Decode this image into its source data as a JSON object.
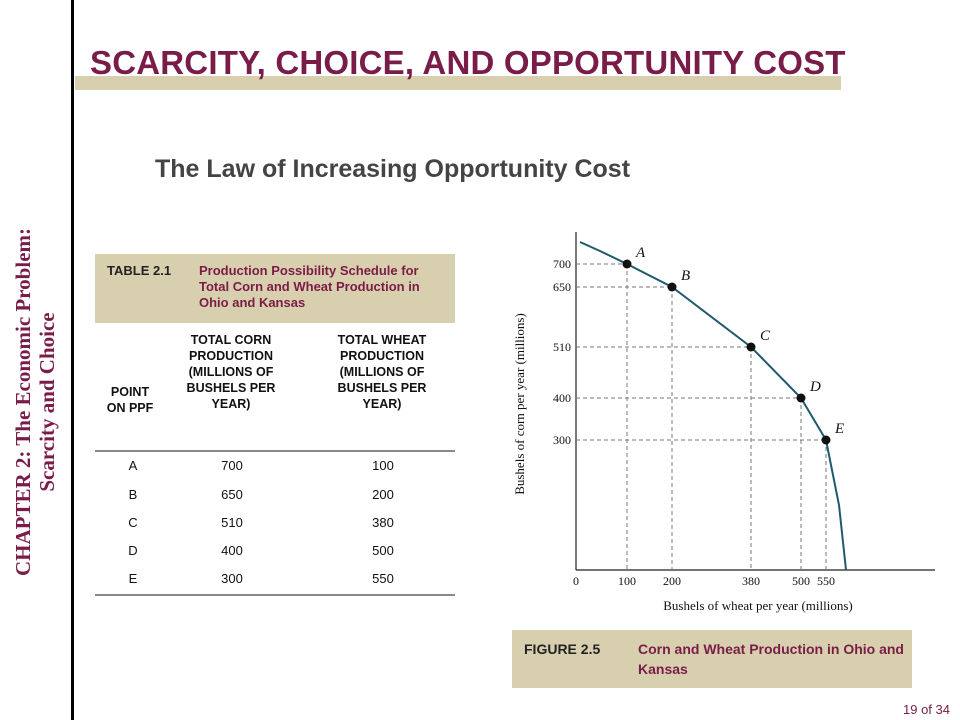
{
  "sidebar": {
    "chapter_line1": "CHAPTER 2:  The Economic Problem:",
    "chapter_line2": "Scarcity and Choice"
  },
  "header": {
    "title": "SCARCITY, CHOICE, AND OPPORTUNITY COST",
    "subtitle": "The Law of Increasing Opportunity Cost"
  },
  "table": {
    "caption_number": "TABLE 2.1",
    "caption_text": "Production Possibility Schedule for Total Corn and Wheat Production in Ohio and Kansas",
    "headers": [
      "POINT ON PPF",
      "TOTAL CORN PRODUCTION (MILLIONS OF BUSHELS PER YEAR)",
      "TOTAL WHEAT PRODUCTION (MILLIONS OF BUSHELS PER YEAR)"
    ],
    "rows": [
      [
        "A",
        "700",
        "100"
      ],
      [
        "B",
        "650",
        "200"
      ],
      [
        "C",
        "510",
        "380"
      ],
      [
        "D",
        "400",
        "500"
      ],
      [
        "E",
        "300",
        "550"
      ]
    ]
  },
  "figure": {
    "caption_number": "FIGURE 2.5",
    "caption_text": "Corn and Wheat Production in Ohio and Kansas"
  },
  "chart_data": {
    "type": "line",
    "xlabel": "Bushels of wheat per year (millions)",
    "ylabel": "Bushels of corn per year (millions)",
    "x_ticks": [
      "0",
      "100",
      "200",
      "380",
      "500",
      "550"
    ],
    "y_ticks": [
      "700",
      "650",
      "510",
      "400",
      "300"
    ],
    "points": [
      {
        "label": "A",
        "x": 100,
        "y": 700
      },
      {
        "label": "B",
        "x": 200,
        "y": 650
      },
      {
        "label": "C",
        "x": 380,
        "y": 510
      },
      {
        "label": "D",
        "x": 500,
        "y": 400
      },
      {
        "label": "E",
        "x": 550,
        "y": 300
      }
    ],
    "grid": false,
    "curve_color": "#1f5a6a",
    "legend": "none"
  },
  "footer": {
    "page": "19 of 34"
  }
}
